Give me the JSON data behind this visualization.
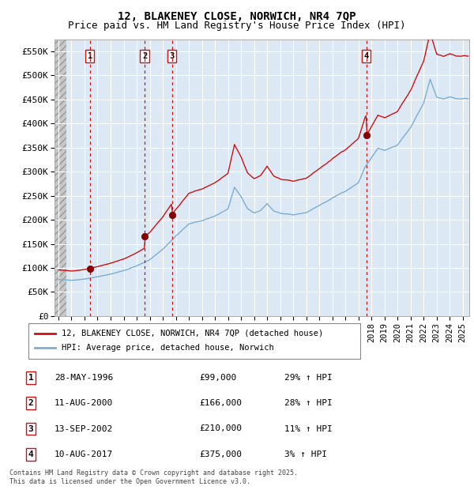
{
  "title": "12, BLAKENEY CLOSE, NORWICH, NR4 7QP",
  "subtitle": "Price paid vs. HM Land Registry's House Price Index (HPI)",
  "ylabel_ticks": [
    "£0",
    "£50K",
    "£100K",
    "£150K",
    "£200K",
    "£250K",
    "£300K",
    "£350K",
    "£400K",
    "£450K",
    "£500K",
    "£550K"
  ],
  "ytick_values": [
    0,
    50000,
    100000,
    150000,
    200000,
    250000,
    300000,
    350000,
    400000,
    450000,
    500000,
    550000
  ],
  "ylim": [
    0,
    575000
  ],
  "xlim_start": 1993.7,
  "xlim_end": 2025.5,
  "sale_events": [
    {
      "num": 1,
      "date": "28-MAY-1996",
      "year": 1996.41,
      "price": 99000,
      "hpi_pct": "29% ↑ HPI"
    },
    {
      "num": 2,
      "date": "11-AUG-2000",
      "year": 2000.61,
      "price": 166000,
      "hpi_pct": "28% ↑ HPI"
    },
    {
      "num": 3,
      "date": "13-SEP-2002",
      "year": 2002.7,
      "price": 210000,
      "hpi_pct": "11% ↑ HPI"
    },
    {
      "num": 4,
      "date": "10-AUG-2017",
      "year": 2017.61,
      "price": 375000,
      "hpi_pct": "3% ↑ HPI"
    }
  ],
  "hpi_line_color": "#7aadd4",
  "price_line_color": "#cc1111",
  "sale_dot_color": "#880000",
  "sale_vline_color": "#cc1111",
  "legend_label_price": "12, BLAKENEY CLOSE, NORWICH, NR4 7QP (detached house)",
  "legend_label_hpi": "HPI: Average price, detached house, Norwich",
  "footer": "Contains HM Land Registry data © Crown copyright and database right 2025.\nThis data is licensed under the Open Government Licence v3.0.",
  "background_plot": "#dce9f5",
  "grid_color": "#ffffff",
  "title_fontsize": 10,
  "subtitle_fontsize": 9,
  "sale_rows": [
    {
      "num": "1",
      "date": "28-MAY-1996",
      "price": "£99,000",
      "hpi": "29% ↑ HPI"
    },
    {
      "num": "2",
      "date": "11-AUG-2000",
      "price": "£166,000",
      "hpi": "28% ↑ HPI"
    },
    {
      "num": "3",
      "date": "13-SEP-2002",
      "price": "£210,000",
      "hpi": "11% ↑ HPI"
    },
    {
      "num": "4",
      "date": "10-AUG-2017",
      "price": "£375,000",
      "hpi": "3% ↑ HPI"
    }
  ]
}
